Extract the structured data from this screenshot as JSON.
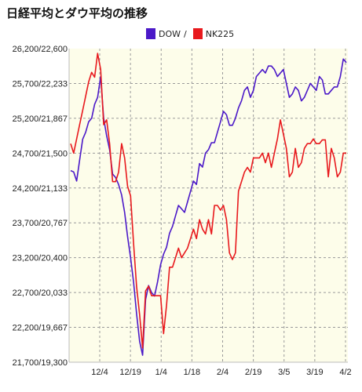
{
  "title": "日経平均とダウ平均の推移",
  "legend": {
    "dow_label": "DOW",
    "separator": "/",
    "nk_label": "NK225",
    "dow_color": "#4b19c8",
    "nk_color": "#e8191d"
  },
  "chart_data": {
    "type": "line",
    "background": "#fdfdea",
    "grid": true,
    "y_ticks": [
      "26,200/22,600",
      "25,700/22,233",
      "25,200/21,867",
      "24,700/21,500",
      "24,200/21,133",
      "23,700/20,767",
      "23,200/20,400",
      "22,700/20,033",
      "22,200/19,667",
      "21,700/19,300"
    ],
    "x_ticks": [
      "12/4",
      "12/19",
      "1/4",
      "1/18",
      "2/4",
      "2/19",
      "3/5",
      "3/19",
      "4/2"
    ],
    "dow_range": [
      21700,
      26200
    ],
    "nk_range": [
      19300,
      22600
    ],
    "series": [
      {
        "name": "DOW",
        "color": "#4b19c8",
        "values": [
          24450,
          24430,
          24300,
          24600,
          24900,
          25000,
          25150,
          25200,
          25400,
          25500,
          25800,
          25200,
          24950,
          24750,
          24400,
          24350,
          24250,
          24100,
          23850,
          23500,
          23200,
          22850,
          22400,
          22000,
          21800,
          22600,
          22800,
          22700,
          22650,
          22850,
          23100,
          23250,
          23350,
          23550,
          23650,
          23800,
          23950,
          23900,
          23850,
          24000,
          24150,
          24300,
          24250,
          24550,
          24500,
          24700,
          24750,
          24850,
          24850,
          25000,
          25150,
          25300,
          25250,
          25100,
          25100,
          25200,
          25350,
          25450,
          25600,
          25650,
          25500,
          25600,
          25800,
          25850,
          25900,
          25850,
          25950,
          25950,
          25900,
          25800,
          25850,
          25900,
          25700,
          25500,
          25550,
          25650,
          25600,
          25450,
          25500,
          25600,
          25700,
          25650,
          25600,
          25800,
          25750,
          25550,
          25550,
          25600,
          25650,
          25650,
          25800,
          26050,
          26000
        ]
      },
      {
        "name": "NK225",
        "color": "#e8191d",
        "values": [
          21600,
          21500,
          21650,
          21800,
          21950,
          22100,
          22250,
          22350,
          22300,
          22550,
          22380,
          21800,
          21850,
          21600,
          21200,
          21200,
          21300,
          21600,
          21450,
          21150,
          21050,
          20550,
          20100,
          19800,
          19450,
          20050,
          20100,
          20000,
          20000,
          20000,
          20000,
          19600,
          19900,
          20300,
          20300,
          20400,
          20500,
          20400,
          20450,
          20500,
          20600,
          20700,
          20600,
          20800,
          20700,
          20650,
          20800,
          20650,
          20950,
          20950,
          20900,
          20950,
          20800,
          20450,
          20380,
          20450,
          21100,
          21200,
          21300,
          21350,
          21300,
          21450,
          21450,
          21450,
          21500,
          21400,
          21500,
          21350,
          21500,
          21650,
          21850,
          21700,
          21550,
          21250,
          21300,
          21550,
          21350,
          21400,
          21550,
          21600,
          21600,
          21650,
          21600,
          21600,
          21640,
          21640,
          21250,
          21550,
          21450,
          21250,
          21300,
          21500,
          21500
        ]
      }
    ]
  }
}
